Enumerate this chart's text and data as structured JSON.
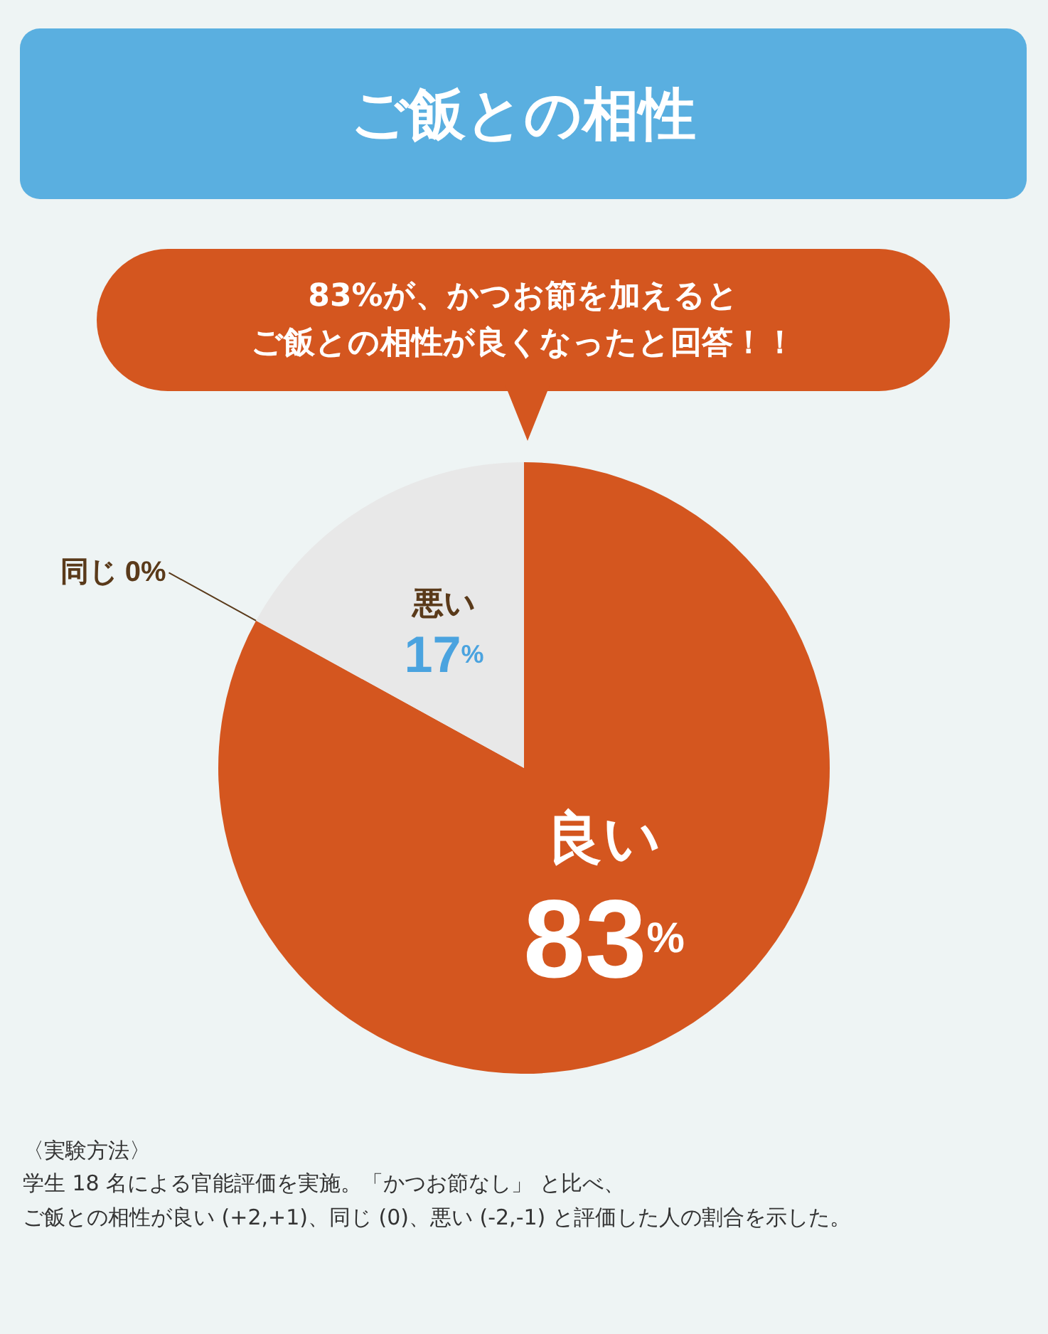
{
  "chart_data": {
    "type": "pie",
    "title": "ご飯との相性",
    "categories": [
      "良い",
      "同じ",
      "悪い"
    ],
    "values": [
      83,
      0,
      17
    ],
    "value_labels": [
      "83%",
      "0%",
      "17%"
    ],
    "colors": [
      "#d4561f",
      "#5a3a1a",
      "#e8e8e8"
    ],
    "legend": false,
    "annotations": [
      "83%が、かつお節を加えると",
      "ご飯との相性が良くなったと回答！！",
      "〈実験方法〉",
      "学生 18 名による官能評価を実施。「かつお節なし」 と比べ、",
      "ご飯との相性が良い (+2,+1)、同じ (0)、悪い (-2,-1) と評価した人の割合を示した。"
    ]
  }
}
